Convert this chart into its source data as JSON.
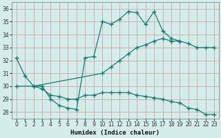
{
  "xlabel": "Humidex (Indice chaleur)",
  "bg_color": "#d4ecea",
  "grid_color": "#c0d8d8",
  "line_color": "#1a7a6e",
  "xlim": [
    -0.5,
    23.5
  ],
  "ylim": [
    27.5,
    36.5
  ],
  "yticks": [
    28,
    29,
    30,
    31,
    32,
    33,
    34,
    35,
    36
  ],
  "xticks": [
    0,
    1,
    2,
    3,
    4,
    5,
    6,
    7,
    8,
    9,
    10,
    11,
    12,
    13,
    14,
    15,
    16,
    17,
    18,
    19,
    20,
    21,
    22,
    23
  ],
  "line1_x": [
    0,
    1,
    2,
    3,
    4,
    5,
    6,
    7,
    8,
    9,
    10,
    11,
    12,
    13,
    14,
    15,
    16,
    17,
    18,
    19
  ],
  "line1_y": [
    32.2,
    30.8,
    30.0,
    30.0,
    29.0,
    28.5,
    28.3,
    28.2,
    32.2,
    32.3,
    35.0,
    34.8,
    35.2,
    35.8,
    35.7,
    34.8,
    35.8,
    34.3,
    33.7,
    33.5
  ],
  "line2_x": [
    2,
    3,
    4,
    5,
    6,
    7,
    8,
    9,
    10,
    11,
    12,
    13,
    14,
    15,
    16,
    17,
    18,
    19,
    20,
    21,
    22,
    23
  ],
  "line2_y": [
    30.0,
    29.8,
    29.3,
    29.2,
    29.0,
    29.0,
    29.3,
    29.3,
    29.5,
    29.5,
    29.5,
    29.5,
    29.3,
    29.2,
    29.1,
    29.0,
    28.8,
    28.7,
    28.3,
    28.2,
    27.8,
    27.8
  ],
  "line3_x": [
    0,
    2,
    10,
    11,
    12,
    13,
    14,
    15,
    16,
    17,
    18,
    19,
    20,
    21,
    22,
    23
  ],
  "line3_y": [
    30.0,
    30.0,
    31.0,
    31.5,
    32.0,
    32.5,
    33.0,
    33.2,
    33.5,
    33.7,
    33.5,
    33.5,
    33.3,
    33.0,
    33.0,
    33.0
  ]
}
